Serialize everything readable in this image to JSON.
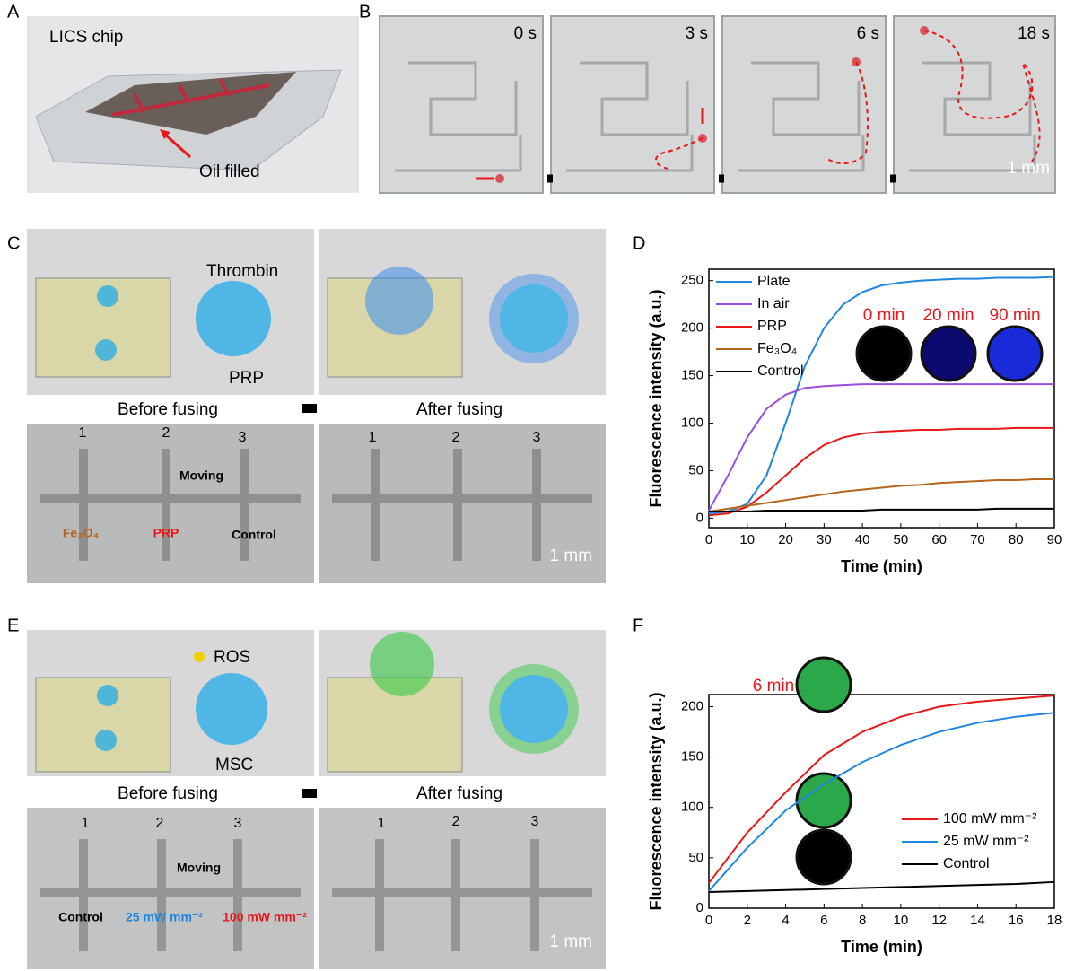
{
  "panel_labels": [
    "A",
    "B",
    "C",
    "D",
    "E",
    "F"
  ],
  "panel_a": {
    "title": "LICS chip",
    "annotation": "Oil filled"
  },
  "panel_b": {
    "times": [
      "0 s",
      "3 s",
      "6 s",
      "18 s"
    ],
    "scale": "1 mm"
  },
  "panel_c": {
    "reagent": "Thrombin",
    "sample": "PRP",
    "before": "Before fusing",
    "after": "After fusing",
    "numbers_before": [
      "1",
      "2",
      "3"
    ],
    "numbers_after": [
      "1",
      "2",
      "3"
    ],
    "moving": "Moving",
    "labels": [
      "Fe₃O₄",
      "PRP",
      "Control"
    ],
    "scale": "1 mm"
  },
  "panel_e": {
    "reagent": "ROS",
    "sample": "MSC",
    "before": "Before fusing",
    "after": "After fusing",
    "numbers_before": [
      "1",
      "2",
      "3"
    ],
    "numbers_after": [
      "1",
      "2",
      "3"
    ],
    "moving": "Moving",
    "labels": [
      "Control",
      "25 mW mm⁻²",
      "100 mW mm⁻²"
    ],
    "scale": "1 mm"
  },
  "chart_data": [
    {
      "type": "line",
      "xlabel": "Time (min)",
      "ylabel": "Fluorescence intensity (a.u.)",
      "x": [
        0,
        5,
        10,
        15,
        20,
        25,
        30,
        35,
        40,
        45,
        50,
        55,
        60,
        65,
        70,
        75,
        80,
        85,
        90
      ],
      "xlim": [
        0,
        90
      ],
      "xticks": [
        0,
        10,
        20,
        30,
        40,
        50,
        60,
        70,
        80,
        90
      ],
      "ylim": [
        -10,
        262
      ],
      "yticks": [
        0,
        50,
        100,
        150,
        200,
        250
      ],
      "legend": "upper left",
      "annotations": [
        "0 min",
        "20 min",
        "90 min"
      ],
      "series": [
        {
          "name": "Plate",
          "color": "#1f86e0",
          "values": [
            5,
            7,
            15,
            45,
            100,
            160,
            200,
            225,
            238,
            245,
            248,
            250,
            251,
            252,
            252,
            253,
            253,
            253,
            254
          ]
        },
        {
          "name": "In air",
          "color": "#9a4fdc",
          "values": [
            8,
            45,
            85,
            115,
            130,
            137,
            139,
            140,
            141,
            141,
            141,
            141,
            141,
            141,
            141,
            141,
            141,
            141,
            141
          ]
        },
        {
          "name": "PRP",
          "color": "#e8181a",
          "values": [
            3,
            5,
            12,
            27,
            45,
            63,
            77,
            85,
            89,
            91,
            92,
            93,
            93,
            94,
            94,
            94,
            95,
            95,
            95
          ]
        },
        {
          "name": "Fe₃O₄",
          "color": "#b5651d",
          "values": [
            7,
            10,
            13,
            16,
            19,
            22,
            25,
            28,
            30,
            32,
            34,
            35,
            37,
            38,
            39,
            40,
            40,
            41,
            41
          ]
        },
        {
          "name": "Control",
          "color": "#000000",
          "values": [
            7,
            7,
            7,
            8,
            8,
            8,
            8,
            8,
            8,
            9,
            9,
            9,
            9,
            9,
            9,
            10,
            10,
            10,
            10
          ]
        }
      ]
    },
    {
      "type": "line",
      "xlabel": "Time (min)",
      "ylabel": "Fluorescence intensity (a.u.)",
      "x": [
        0,
        2,
        4,
        6,
        8,
        10,
        12,
        14,
        16,
        18
      ],
      "xlim": [
        0,
        18
      ],
      "xticks": [
        0,
        2,
        4,
        6,
        8,
        10,
        12,
        14,
        16,
        18
      ],
      "ylim": [
        0,
        212
      ],
      "yticks": [
        0,
        50,
        100,
        150,
        200
      ],
      "legend": "center right",
      "annotations": [
        "6 min"
      ],
      "series": [
        {
          "name": "100 mW mm⁻²",
          "color": "#e8181a",
          "values": [
            25,
            75,
            115,
            152,
            175,
            190,
            200,
            205,
            208,
            211
          ]
        },
        {
          "name": "25 mW mm⁻²",
          "color": "#1f86e0",
          "values": [
            17,
            60,
            97,
            123,
            145,
            162,
            175,
            184,
            190,
            194
          ]
        },
        {
          "name": "Control",
          "color": "#000000",
          "values": [
            16,
            17,
            18,
            19,
            20,
            21,
            22,
            23,
            24,
            26
          ]
        }
      ]
    }
  ]
}
